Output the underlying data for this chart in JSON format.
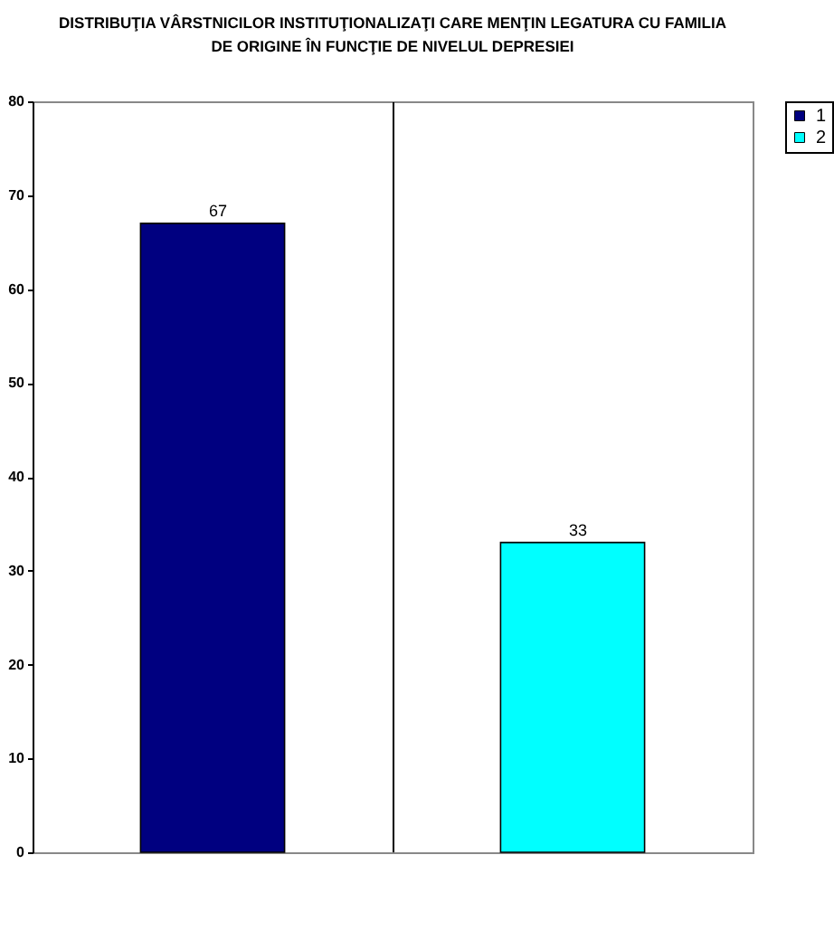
{
  "chart_data": {
    "type": "bar",
    "title": "DISTRIBUŢIA VÂRSTNICILOR INSTITUŢIONALIZAŢI CARE MENŢIN LEGATURA CU FAMILIA\nDE ORIGINE ÎN FUNCŢIE DE NIVELUL DEPRESIEI",
    "categories": [
      null,
      null
    ],
    "series": [
      {
        "name": "1",
        "color": "#000080",
        "values": [
          67,
          null
        ]
      },
      {
        "name": "2",
        "color": "#00ffff",
        "values": [
          null,
          33
        ]
      }
    ],
    "ylim": [
      0,
      80
    ],
    "yticks": [
      0,
      10,
      20,
      30,
      40,
      50,
      60,
      70,
      80
    ],
    "grid": "x",
    "legend": "right",
    "data_labels": true
  }
}
